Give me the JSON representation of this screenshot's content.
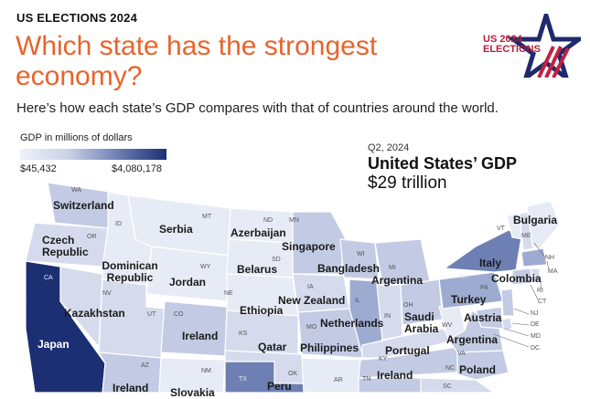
{
  "header": {
    "kicker": "US ELECTIONS 2024",
    "headline": "Which state has the strongest economy?",
    "deck": "Here’s how each state’s GDP compares with that of countries around the world."
  },
  "logo": {
    "line1": "US 2024",
    "line2": "ELECTIONS",
    "colors": {
      "navy": "#1e2a6b",
      "red": "#c4203f"
    }
  },
  "legend": {
    "title": "GDP in millions of dollars",
    "min_label": "$45,432",
    "max_label": "$4,080,178",
    "min_color": "#eef1f8",
    "max_color": "#1c2f73"
  },
  "national": {
    "period": "Q2, 2024",
    "title": "United States’ GDP",
    "value": "$29 trillion"
  },
  "states": {
    "WA": "WA",
    "OR": "OR",
    "CA": "CA",
    "ID": "ID",
    "NV": "NV",
    "MT": "MT",
    "WY": "WY",
    "UT": "UT",
    "CO": "CO",
    "AZ": "AZ",
    "NM": "NM",
    "ND": "ND",
    "SD": "SD",
    "NE": "NE",
    "KS": "KS",
    "OK": "OK",
    "TX": "TX",
    "MN": "MN",
    "IA": "IA",
    "MO": "MO",
    "AR": "AR",
    "WI": "WI",
    "IL": "IL",
    "MI": "MI",
    "IN": "IN",
    "OH": "OH",
    "KY": "KY",
    "TN": "TN",
    "WV": "WV",
    "VA": "VA",
    "NC": "NC",
    "SC": "SC",
    "PA": "PA",
    "NY": "NY",
    "VT": "VT",
    "ME": "ME",
    "NH": "NH",
    "MA": "MA",
    "RI": "RI",
    "CT": "CT",
    "NJ": "NJ",
    "DE": "DE",
    "MD": "MD",
    "DC": "DC"
  },
  "countries": {
    "WA": "Switzerland",
    "OR": "Czech Republic",
    "CA": "Japan",
    "ID": "Serbia",
    "NV": "Dominican Republic",
    "UT": "Kazakhstan",
    "MT": "Azerbaijan",
    "WY": "Jordan",
    "ND": "Singapore",
    "SD": "Belarus",
    "NE": "Ethiopia",
    "CO": "Ireland",
    "KS": "Qatar",
    "AZ": "Ireland",
    "NM": "Slovakia",
    "OK": "Peru",
    "MN": "Bangladesh",
    "IA": "New Zealand",
    "MO": "Philippines",
    "WI": "Argentina",
    "IL": "Netherlands",
    "MI": "Argentina",
    "OH": "Saudi Arabia",
    "IN": "Portugal",
    "TN": "Ireland",
    "VA": "Argentina",
    "NC": "Poland",
    "PA": "Turkey",
    "NY": "Italy",
    "NJ": "Austria",
    "MA": "Colombia",
    "ME": "Bulgaria"
  },
  "colors": {
    "c1": "#e7ebf5",
    "c2": "#d5dbec",
    "c3": "#c2cbe3",
    "c4": "#9eabd1",
    "c5": "#6e7fb3",
    "c6": "#1c2f73",
    "accent": "#e8642c"
  }
}
